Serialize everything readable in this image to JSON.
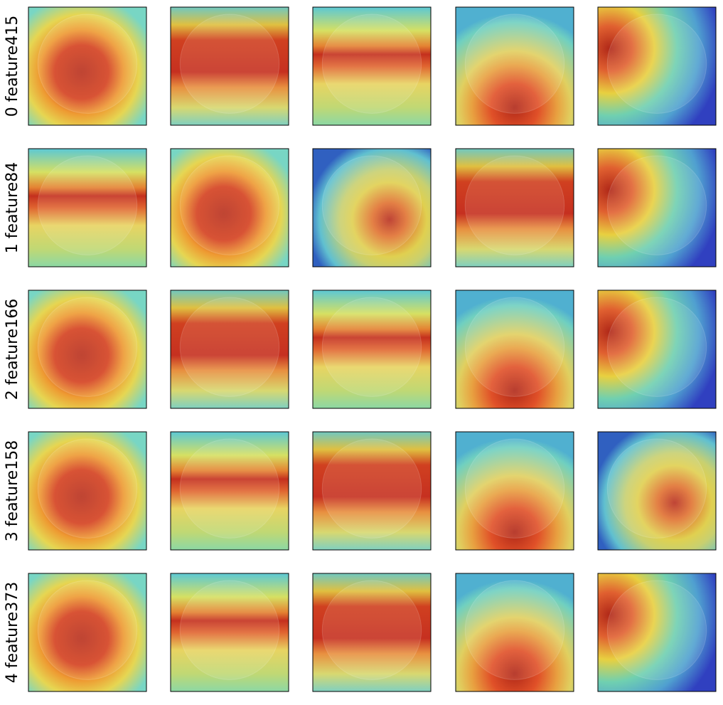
{
  "row_labels": [
    "0 feature415",
    "1 feature84",
    "2 feature166",
    "3 feature158",
    "4 feature373"
  ]
}
